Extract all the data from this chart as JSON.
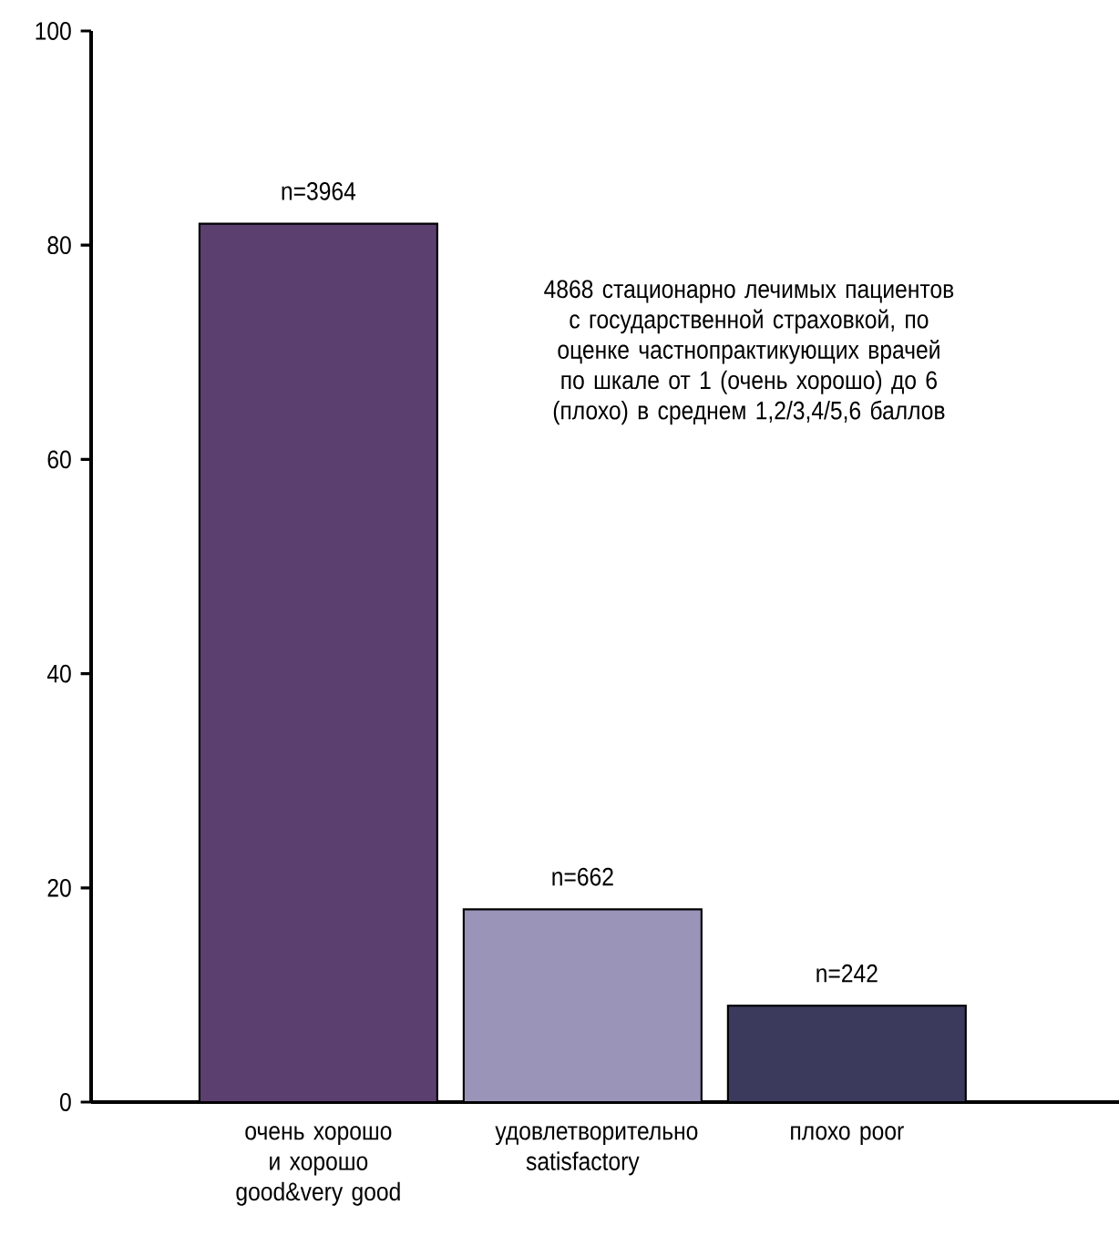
{
  "chart_data": {
    "type": "bar",
    "categories": [
      "очень хорошо и хорошо good&very good",
      "удовлетворительно satisfactory",
      "плохо poor"
    ],
    "values": [
      82,
      18,
      9
    ],
    "colors": [
      "#5b3f6e",
      "#9a94b9",
      "#3b3a5c"
    ],
    "ylim": [
      0,
      100
    ],
    "yticks": [
      0,
      20,
      40,
      60,
      80,
      100
    ],
    "grid": false,
    "annotations": [
      {
        "text": "n=3964",
        "x": "очень хорошо и хорошо good&very good",
        "y": 82
      },
      {
        "text": "n=662",
        "x": "удовлетворительно satisfactory",
        "y": 18
      },
      {
        "text": "n=242",
        "x": "плохо poor",
        "y": 9
      },
      "4868 стационарно лечимых пациентов с государственной страховкой, по оценке частнопрактикующих врачей по шкале от 1 (очень хорошо) до 6 (плохо) в среднем 1,2/3,4/5,6 баллов"
    ]
  }
}
